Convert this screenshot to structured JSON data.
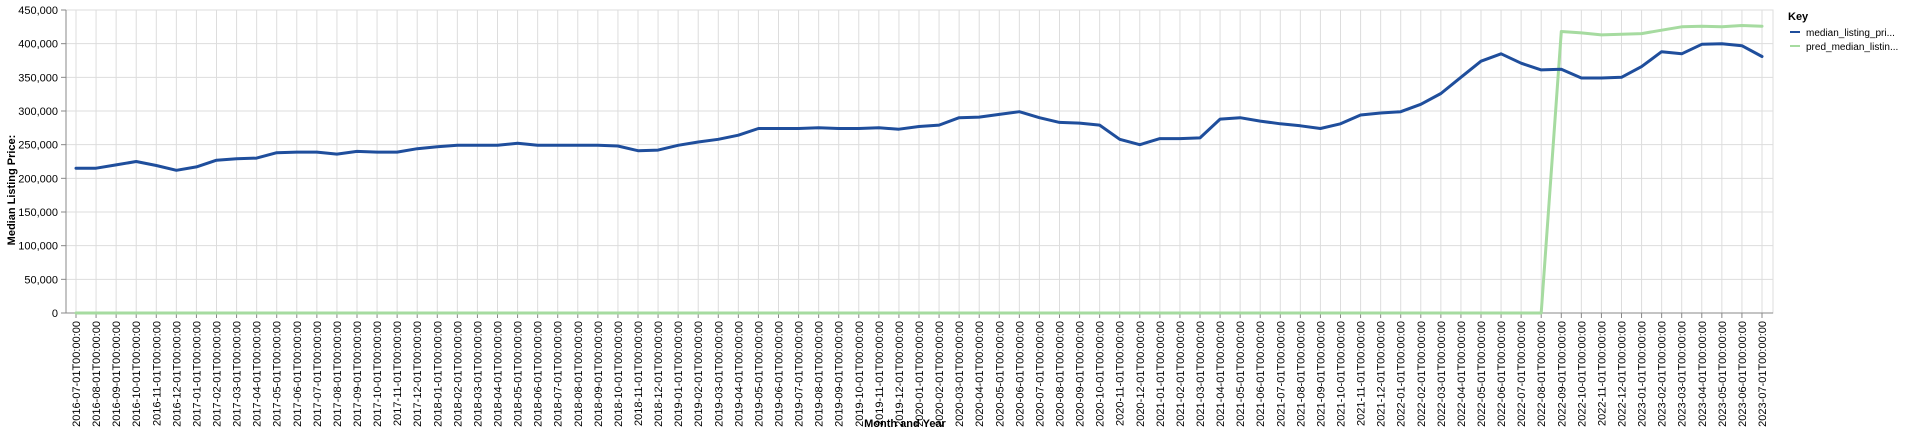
{
  "chart_data": {
    "type": "line",
    "xlabel": "Month and Year",
    "ylabel": "Median Listing Price:",
    "ylim": [
      0,
      450000
    ],
    "yticks": [
      0,
      50000,
      100000,
      150000,
      200000,
      250000,
      300000,
      350000,
      400000,
      450000
    ],
    "ytick_labels": [
      "0",
      "50,000",
      "100,000",
      "150,000",
      "200,000",
      "250,000",
      "300,000",
      "350,000",
      "400,000",
      "450,000"
    ],
    "grid": true,
    "legend": {
      "title": "Key",
      "position": "right"
    },
    "x": [
      "2016-07-01T00:00:00",
      "2016-08-01T00:00:00",
      "2016-09-01T00:00:00",
      "2016-10-01T00:00:00",
      "2016-11-01T00:00:00",
      "2016-12-01T00:00:00",
      "2017-01-01T00:00:00",
      "2017-02-01T00:00:00",
      "2017-03-01T00:00:00",
      "2017-04-01T00:00:00",
      "2017-05-01T00:00:00",
      "2017-06-01T00:00:00",
      "2017-07-01T00:00:00",
      "2017-08-01T00:00:00",
      "2017-09-01T00:00:00",
      "2017-10-01T00:00:00",
      "2017-11-01T00:00:00",
      "2017-12-01T00:00:00",
      "2018-01-01T00:00:00",
      "2018-02-01T00:00:00",
      "2018-03-01T00:00:00",
      "2018-04-01T00:00:00",
      "2018-05-01T00:00:00",
      "2018-06-01T00:00:00",
      "2018-07-01T00:00:00",
      "2018-08-01T00:00:00",
      "2018-09-01T00:00:00",
      "2018-10-01T00:00:00",
      "2018-11-01T00:00:00",
      "2018-12-01T00:00:00",
      "2019-01-01T00:00:00",
      "2019-02-01T00:00:00",
      "2019-03-01T00:00:00",
      "2019-04-01T00:00:00",
      "2019-05-01T00:00:00",
      "2019-06-01T00:00:00",
      "2019-07-01T00:00:00",
      "2019-08-01T00:00:00",
      "2019-09-01T00:00:00",
      "2019-10-01T00:00:00",
      "2019-11-01T00:00:00",
      "2019-12-01T00:00:00",
      "2020-01-01T00:00:00",
      "2020-02-01T00:00:00",
      "2020-03-01T00:00:00",
      "2020-04-01T00:00:00",
      "2020-05-01T00:00:00",
      "2020-06-01T00:00:00",
      "2020-07-01T00:00:00",
      "2020-08-01T00:00:00",
      "2020-09-01T00:00:00",
      "2020-10-01T00:00:00",
      "2020-11-01T00:00:00",
      "2020-12-01T00:00:00",
      "2021-01-01T00:00:00",
      "2021-02-01T00:00:00",
      "2021-03-01T00:00:00",
      "2021-04-01T00:00:00",
      "2021-05-01T00:00:00",
      "2021-06-01T00:00:00",
      "2021-07-01T00:00:00",
      "2021-08-01T00:00:00",
      "2021-09-01T00:00:00",
      "2021-10-01T00:00:00",
      "2021-11-01T00:00:00",
      "2021-12-01T00:00:00",
      "2022-01-01T00:00:00",
      "2022-02-01T00:00:00",
      "2022-03-01T00:00:00",
      "2022-04-01T00:00:00",
      "2022-05-01T00:00:00",
      "2022-06-01T00:00:00",
      "2022-07-01T00:00:00",
      "2022-08-01T00:00:00",
      "2022-09-01T00:00:00",
      "2022-10-01T00:00:00",
      "2022-11-01T00:00:00",
      "2022-12-01T00:00:00",
      "2023-01-01T00:00:00",
      "2023-02-01T00:00:00",
      "2023-03-01T00:00:00",
      "2023-04-01T00:00:00",
      "2023-05-01T00:00:00",
      "2023-06-01T00:00:00",
      "2023-07-01T00:00:00"
    ],
    "series": [
      {
        "name": "median_listing_pri...",
        "color": "#1f4e9c",
        "values": [
          215000,
          215000,
          220000,
          225000,
          219000,
          212000,
          217000,
          227000,
          229000,
          230000,
          238000,
          239000,
          239000,
          236000,
          240000,
          239000,
          239000,
          244000,
          247000,
          249000,
          249000,
          249000,
          252000,
          249000,
          249000,
          249000,
          249000,
          248000,
          241000,
          242000,
          249000,
          254000,
          258000,
          264000,
          274000,
          274000,
          274000,
          275000,
          274000,
          274000,
          275000,
          273000,
          277000,
          279000,
          290000,
          291000,
          295000,
          299000,
          290000,
          283000,
          282000,
          279000,
          258000,
          250000,
          259000,
          259000,
          260000,
          288000,
          290000,
          285000,
          281000,
          278000,
          274000,
          281000,
          294000,
          297000,
          299000,
          310000,
          326000,
          350000,
          374000,
          385000,
          371000,
          361000,
          362000,
          349000,
          349000,
          350000,
          366000,
          388000,
          385000,
          399000,
          400000,
          397000,
          381000
        ]
      },
      {
        "name": "pred_median_listin...",
        "color": "#a6dba0",
        "values": [
          0,
          0,
          0,
          0,
          0,
          0,
          0,
          0,
          0,
          0,
          0,
          0,
          0,
          0,
          0,
          0,
          0,
          0,
          0,
          0,
          0,
          0,
          0,
          0,
          0,
          0,
          0,
          0,
          0,
          0,
          0,
          0,
          0,
          0,
          0,
          0,
          0,
          0,
          0,
          0,
          0,
          0,
          0,
          0,
          0,
          0,
          0,
          0,
          0,
          0,
          0,
          0,
          0,
          0,
          0,
          0,
          0,
          0,
          0,
          0,
          0,
          0,
          0,
          0,
          0,
          0,
          0,
          0,
          0,
          0,
          0,
          0,
          0,
          0,
          418000,
          416000,
          413000,
          414000,
          415000,
          420000,
          425000,
          426000,
          425000,
          427000,
          426000
        ]
      }
    ]
  }
}
